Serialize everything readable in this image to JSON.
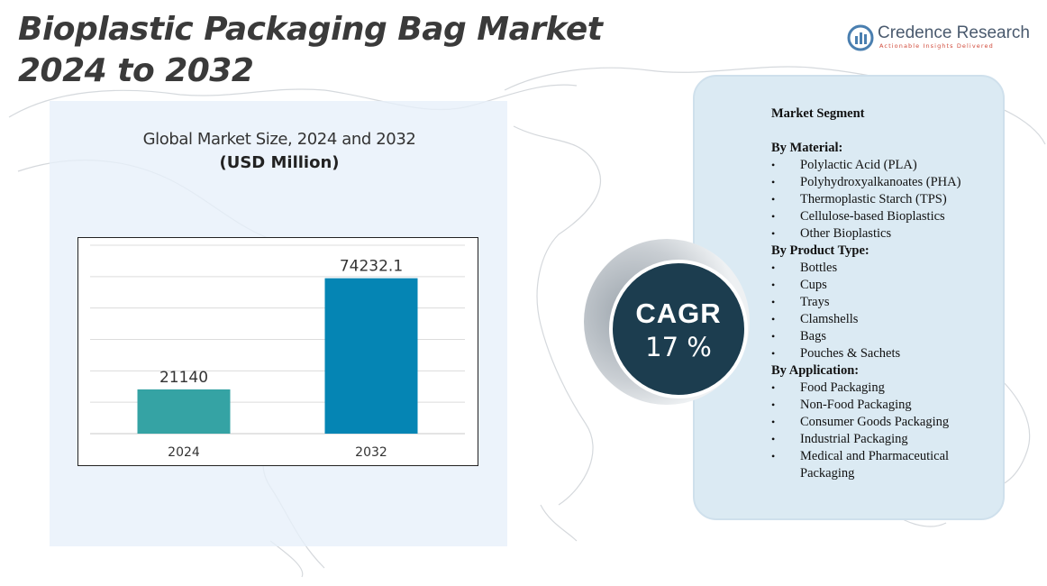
{
  "title": {
    "line1": "Bioplastic Packaging Bag Market",
    "line2": "2024 to 2032"
  },
  "logo": {
    "name": "Credence Research",
    "tagline": "Actionable Insights Delivered"
  },
  "chart_data": {
    "type": "bar",
    "title": "Global Market Size, 2024 and 2032",
    "subtitle": "(USD Million)",
    "categories": [
      "2024",
      "2032"
    ],
    "values": [
      21140,
      74232.1
    ],
    "value_labels": [
      "21140",
      "74232.1"
    ],
    "colors": [
      "#35a3a4",
      "#0585b4"
    ],
    "ylim": [
      0,
      90000
    ],
    "grid": true,
    "xlabel": "",
    "ylabel": ""
  },
  "cagr": {
    "label": "CAGR",
    "value": "17 %"
  },
  "segments": {
    "title": "Market Segment",
    "groups": [
      {
        "name": "By Material:",
        "items": [
          "Polylactic Acid (PLA)",
          "Polyhydroxyalkanoates  (PHA)",
          "Thermoplastic Starch (TPS)",
          "Cellulose-based Bioplastics",
          "Other Bioplastics"
        ]
      },
      {
        "name": "By Product Type:",
        "items": [
          "Bottles",
          "Cups",
          "Trays",
          "Clamshells",
          "Bags",
          "Pouches & Sachets"
        ]
      },
      {
        "name": "By Application:",
        "items": [
          "Food Packaging",
          "Non-Food Packaging",
          "Consumer Goods Packaging",
          "Industrial  Packaging",
          "Medical and Pharmaceutical Packaging"
        ]
      }
    ]
  }
}
